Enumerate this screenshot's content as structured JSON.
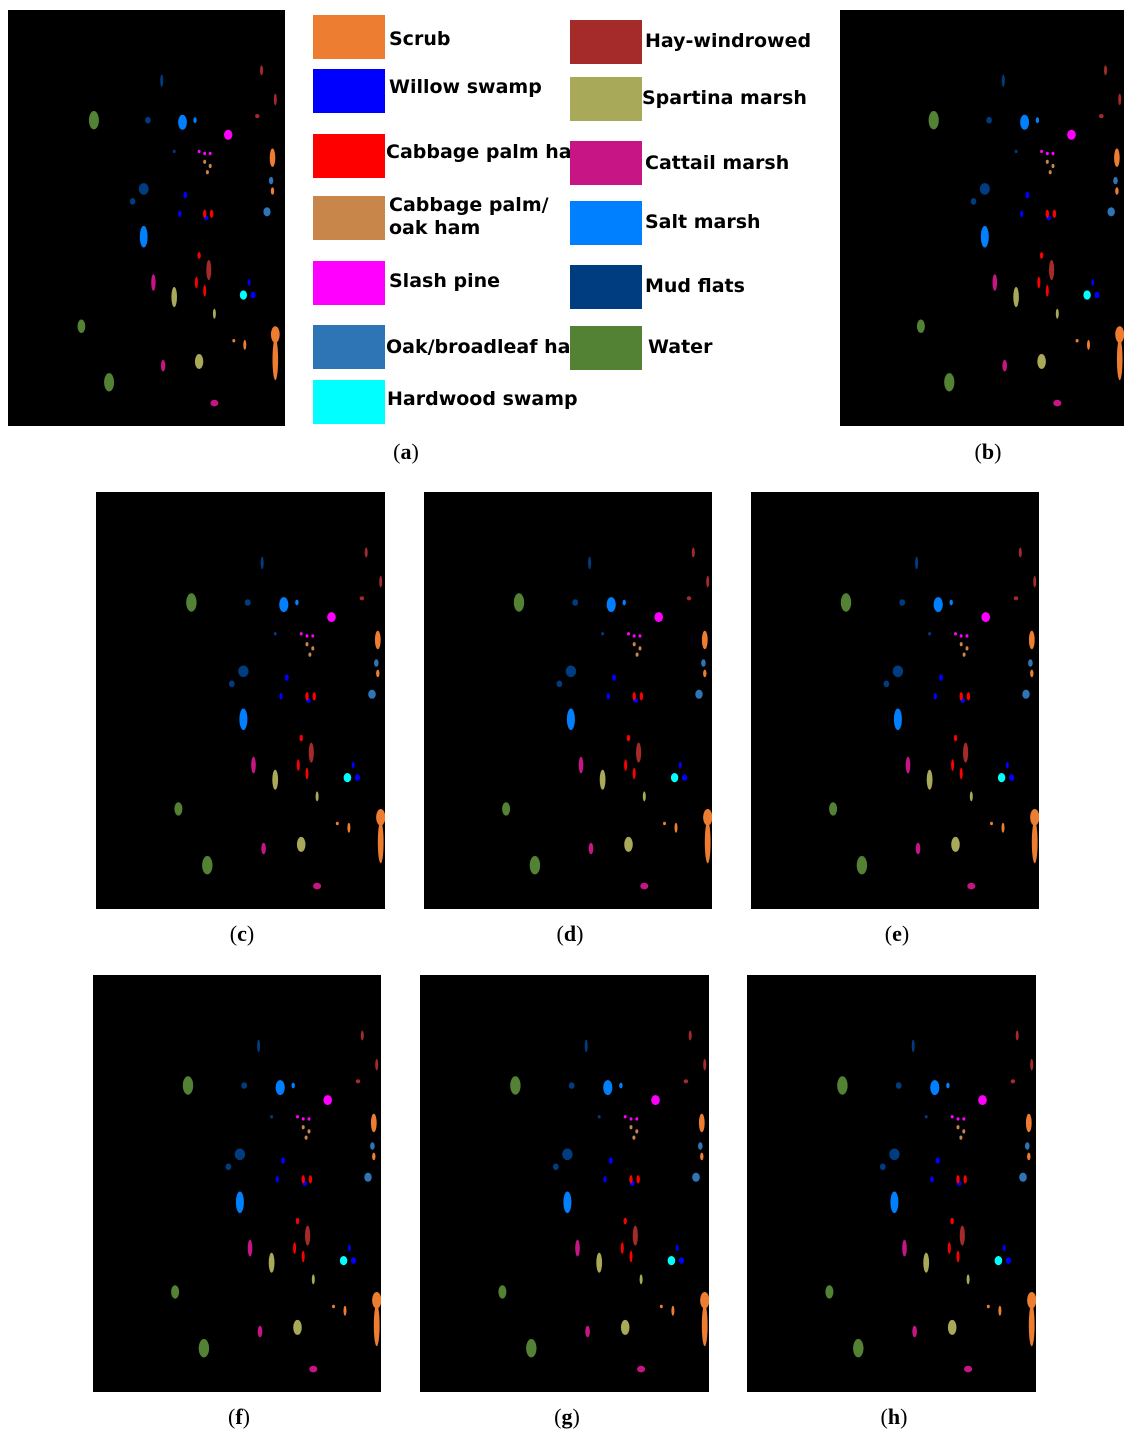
{
  "figure": {
    "panels": [
      {
        "id": "a",
        "caption": "(a)",
        "label": "a"
      },
      {
        "id": "b",
        "caption": "(b)",
        "label": "b"
      },
      {
        "id": "c",
        "caption": "(c)",
        "label": "c"
      },
      {
        "id": "d",
        "caption": "(d)",
        "label": "d"
      },
      {
        "id": "e",
        "caption": "(e)",
        "label": "e"
      },
      {
        "id": "f",
        "caption": "(f)",
        "label": "f"
      },
      {
        "id": "g",
        "caption": "(g)",
        "label": "g"
      },
      {
        "id": "h",
        "caption": "(h)",
        "label": "h"
      }
    ],
    "background_color": "#000000",
    "legend": [
      {
        "label": "Scrub",
        "color": "#ed7d31"
      },
      {
        "label": "Willow swamp",
        "color": "#0000ff"
      },
      {
        "label": "Cabbage palm ham",
        "color": "#ff0000"
      },
      {
        "label": "Cabbage palm/\noak ham",
        "color": "#c8864b"
      },
      {
        "label": "Slash pine",
        "color": "#ff00ff"
      },
      {
        "label": "Oak/broadleaf ham",
        "color": "#2e75b6"
      },
      {
        "label": "Hardwood swamp",
        "color": "#00ffff"
      },
      {
        "label": "Hay-windrowed",
        "color": "#a52a2a"
      },
      {
        "label": "Spartina marsh",
        "color": "#a9a95a"
      },
      {
        "label": "Cattail marsh",
        "color": "#c71585"
      },
      {
        "label": "Salt marsh",
        "color": "#0080ff"
      },
      {
        "label": "Mud flats",
        "color": "#003c80"
      },
      {
        "label": "Water",
        "color": "#548235"
      }
    ]
  }
}
